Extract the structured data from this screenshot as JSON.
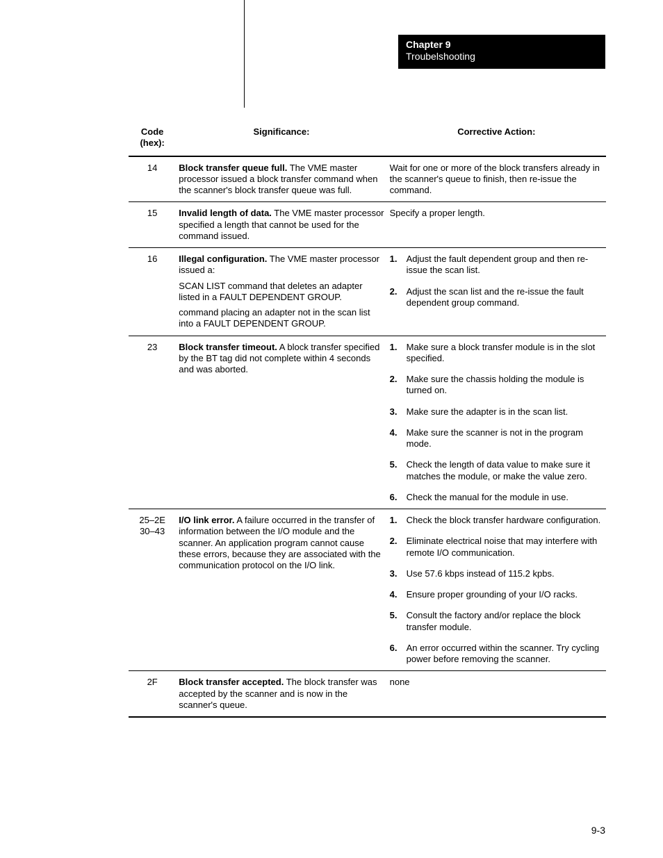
{
  "chapter": {
    "title": "Chapter 9",
    "subtitle": "Troubelshooting"
  },
  "headers": {
    "code": "Code (hex):",
    "significance": "Significance:",
    "action": "Corrective Action:"
  },
  "page_number": "9-3",
  "rows": [
    {
      "code": "14",
      "sig": [
        {
          "bold": "Block transfer queue full.",
          "rest": "  The VME master processor issued a block transfer command when the scanner's block transfer queue was full."
        }
      ],
      "action_plain": "Wait for one or more of the block transfers already in the scanner's queue to finish, then re-issue the command."
    },
    {
      "code": "15",
      "sig": [
        {
          "bold": "Invalid length of data.",
          "rest": "  The VME master processor specified a length that cannot be used for the command issued."
        }
      ],
      "action_plain": "Specify a proper length."
    },
    {
      "code": "16",
      "sig": [
        {
          "bold": "Illegal configuration.",
          "rest": "  The VME master processor issued a:"
        },
        {
          "plain": "SCAN LIST command that deletes an adapter listed in a FAULT DEPENDENT GROUP."
        },
        {
          "plain": "command placing an adapter not in the scan list into a FAULT DEPENDENT GROUP."
        }
      ],
      "action_list": [
        "Adjust the fault dependent group and then re-issue the scan list.",
        "Adjust the scan list and the re-issue the fault dependent group command."
      ]
    },
    {
      "code": "23",
      "sig": [
        {
          "bold": "Block transfer timeout.",
          "rest": "  A block transfer specified by the BT tag did not complete within 4 seconds and was aborted."
        }
      ],
      "action_list": [
        "Make sure a block transfer module is in the slot specified.",
        "Make sure the chassis holding the module is turned on.",
        "Make sure the adapter is in the scan list.",
        "Make sure the scanner is not in the program mode.",
        "Check the length of data value to make sure it matches the module, or make the value zero.",
        "Check the manual for the module in use."
      ]
    },
    {
      "code": "25–2E 30–43",
      "sig": [
        {
          "bold": "I/O link error.",
          "rest": "  A failure occurred in the transfer of information between the I/O module and the scanner. An application program cannot cause these errors, because they are associated with the communication protocol on the I/O link."
        }
      ],
      "action_list": [
        "Check the block transfer hardware configuration.",
        "Eliminate electrical noise that may interfere with remote I/O communication.",
        "Use 57.6 kbps instead of 115.2 kpbs.",
        "Ensure proper grounding of your I/O racks.",
        "Consult the factory and/or replace the block transfer module.",
        "An error occurred within the scanner.  Try cycling power before removing the scanner."
      ]
    },
    {
      "code": "2F",
      "sig": [
        {
          "bold": "Block transfer accepted.",
          "rest": "  The block transfer was accepted by the scanner and is now in the scanner's queue."
        }
      ],
      "action_plain": "none"
    }
  ]
}
